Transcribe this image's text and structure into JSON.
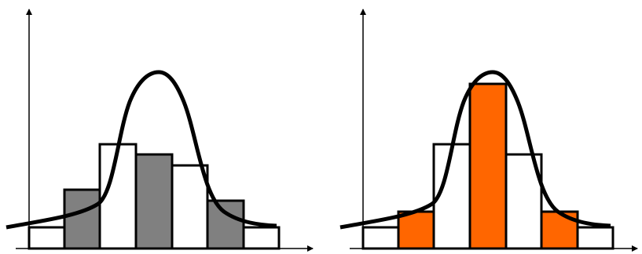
{
  "colors": {
    "background": "#ffffff",
    "stroke": "#000000",
    "fill_gray": "#808080",
    "fill_orange": "#ff6600",
    "fill_white": "#ffffff"
  },
  "panels": [
    {
      "name": "left-panel",
      "bars": [
        {
          "id": "bar-1",
          "fill": "white"
        },
        {
          "id": "bar-2",
          "fill": "gray"
        },
        {
          "id": "bar-3",
          "fill": "white"
        },
        {
          "id": "bar-4",
          "fill": "gray"
        },
        {
          "id": "bar-5",
          "fill": "white"
        },
        {
          "id": "bar-6",
          "fill": "gray"
        },
        {
          "id": "bar-7",
          "fill": "white"
        }
      ]
    },
    {
      "name": "right-panel",
      "bars": [
        {
          "id": "bar-1",
          "fill": "white"
        },
        {
          "id": "bar-2",
          "fill": "orange"
        },
        {
          "id": "bar-3",
          "fill": "white"
        },
        {
          "id": "bar-4",
          "fill": "orange"
        },
        {
          "id": "bar-5",
          "fill": "white"
        },
        {
          "id": "bar-6",
          "fill": "orange"
        },
        {
          "id": "bar-7",
          "fill": "white"
        }
      ]
    }
  ]
}
